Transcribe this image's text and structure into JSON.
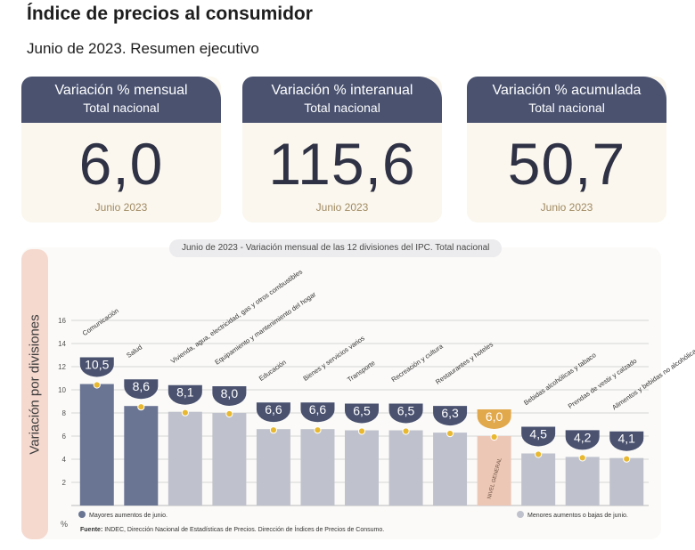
{
  "header": {
    "title": "Índice de precios al consumidor",
    "subtitle": "Junio de 2023. Resumen ejecutivo"
  },
  "cards": [
    {
      "title": "Variación % mensual",
      "subtitle": "Total nacional",
      "value": "6,0",
      "date": "Junio 2023"
    },
    {
      "title": "Variación % interanual",
      "subtitle": "Total nacional",
      "value": "115,6",
      "date": "Junio 2023"
    },
    {
      "title": "Variación % acumulada",
      "subtitle": "Total nacional",
      "value": "50,7",
      "date": "Junio 2023"
    }
  ],
  "side_label": "Variación por divisiones",
  "chart_data": {
    "type": "bar",
    "title_date": "Junio de 2023",
    "title_rest": " - Variación mensual de las 12 divisiones del IPC. Total nacional",
    "ylim": [
      0,
      16
    ],
    "yticks": [
      "2",
      "4",
      "6",
      "8",
      "10",
      "12",
      "14",
      "16"
    ],
    "y_unit": "%",
    "grid": true,
    "categories": [
      "Comunicación",
      "Salud",
      "Vivienda, agua, electricidad, gas y otros combustibles",
      "Equipamiento y mantenimiento del hogar",
      "Educación",
      "Bienes y servicios varios",
      "Transporte",
      "Recreación y cultura",
      "Restaurantes y hoteles",
      "NIVEL GENERAL",
      "Bebidas alcohólicas y tabaco",
      "Prendas de vestir y calzado",
      "Alimentos y bebidas no alcohólicas"
    ],
    "values": [
      10.5,
      8.6,
      8.1,
      8.0,
      6.6,
      6.6,
      6.5,
      6.5,
      6.3,
      6.0,
      4.5,
      4.2,
      4.1
    ],
    "value_labels": [
      "10,5",
      "8,6",
      "8,1",
      "8,0",
      "6,6",
      "6,6",
      "6,5",
      "6,5",
      "6,3",
      "6,0",
      "4,5",
      "4,2",
      "4,1"
    ],
    "groups": [
      "high",
      "high",
      "low",
      "low",
      "low",
      "low",
      "low",
      "low",
      "low",
      "general",
      "low",
      "low",
      "low"
    ],
    "legend_high": "Mayores aumentos de junio.",
    "legend_low": "Menores aumentos o bajas de junio.",
    "colors": {
      "high": "#6a7594",
      "low": "#bfc2cc",
      "general": "#edc7b6",
      "badge": "#4a5270",
      "general_badge": "#e2a84c",
      "dot": "#e8b830"
    }
  },
  "source": {
    "label": "Fuente:",
    "text": "INDEC, Dirección Nacional de Estadísticas de Precios. Dirección de Índices de Precios de Consumo."
  }
}
